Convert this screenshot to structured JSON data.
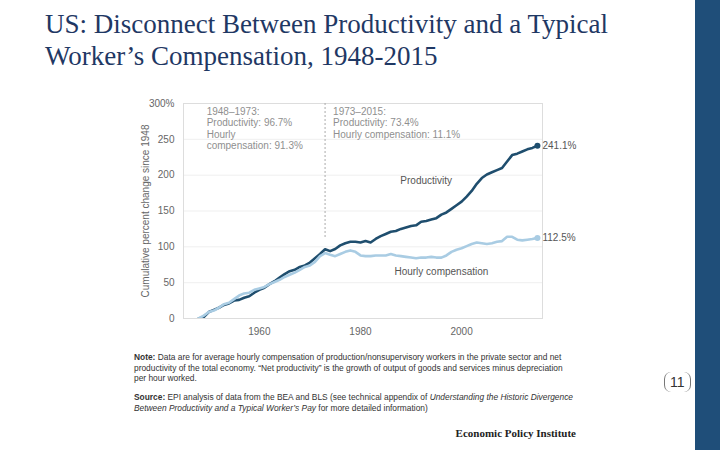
{
  "slide": {
    "title": "US: Disconnect Between Productivity and a Typical Worker’s Compensation, 1948-2015",
    "page_number": 11
  },
  "chart_data": {
    "type": "line",
    "y_label": "Cumulative percent change since 1948",
    "x": [
      1948,
      1949,
      1950,
      1951,
      1952,
      1953,
      1954,
      1955,
      1956,
      1957,
      1958,
      1959,
      1960,
      1961,
      1962,
      1963,
      1964,
      1965,
      1966,
      1967,
      1968,
      1969,
      1970,
      1971,
      1972,
      1973,
      1974,
      1975,
      1976,
      1977,
      1978,
      1979,
      1980,
      1981,
      1982,
      1983,
      1984,
      1985,
      1986,
      1987,
      1988,
      1989,
      1990,
      1991,
      1992,
      1993,
      1994,
      1995,
      1996,
      1997,
      1998,
      1999,
      2000,
      2001,
      2002,
      2003,
      2004,
      2005,
      2006,
      2007,
      2008,
      2009,
      2010,
      2011,
      2012,
      2013,
      2014,
      2015
    ],
    "series": [
      {
        "name": "Productivity",
        "color": "#1f4e6e",
        "end_label": "241.1%",
        "values": [
          0,
          2,
          9,
          12,
          15,
          19,
          21,
          25,
          26,
          29,
          31,
          36,
          40,
          43,
          48,
          52,
          57,
          62,
          66,
          68,
          72,
          74,
          78,
          84,
          90,
          96.7,
          94,
          97,
          102,
          105,
          107,
          107,
          106,
          108,
          106,
          111,
          115,
          118,
          121,
          122,
          125,
          127,
          129,
          130,
          135,
          136,
          138,
          140,
          145,
          148,
          153,
          158,
          163,
          170,
          178,
          188,
          196,
          201,
          204,
          207,
          210,
          219,
          228,
          230,
          233,
          236,
          238,
          241.1
        ]
      },
      {
        "name": "Hourly compensation",
        "color": "#a9cce3",
        "end_label": "112.5%",
        "values": [
          0,
          4,
          9,
          11,
          15,
          20,
          22,
          27,
          32,
          35,
          36,
          40,
          42,
          44,
          48,
          51,
          54,
          58,
          61,
          64,
          68,
          72,
          74,
          79,
          87,
          91.3,
          89,
          87,
          90,
          93,
          95,
          93,
          88,
          87,
          87,
          88,
          88,
          88,
          90,
          88,
          87,
          86,
          85,
          84,
          85,
          85,
          86,
          85,
          85,
          88,
          93,
          96,
          98,
          101,
          104,
          106,
          105,
          104,
          105,
          107,
          108,
          114,
          114,
          110,
          109,
          110,
          111,
          112.5
        ]
      }
    ],
    "xlim": [
      1945,
      2016
    ],
    "xticks": [
      1960,
      1980,
      2000
    ],
    "ylim": [
      0,
      300
    ],
    "yticks": [
      0,
      50,
      100,
      150,
      200,
      250,
      {
        "value": 300,
        "label": "300%"
      }
    ],
    "grid": true,
    "period_notes": [
      {
        "start": 1948,
        "lines": [
          "1948–1973:",
          "Productivity: 96.7%",
          "Hourly",
          "compensation: 91.3%"
        ]
      },
      {
        "start": 1973,
        "lines": [
          "1973–2015:",
          "Productivity: 73.4%",
          "Hourly compensation: 11.1%"
        ]
      }
    ],
    "note": {
      "label": "Note:",
      "text": "Data are for average hourly compensation of production/nonsupervisory workers in the private sector and net productivity of the total economy. “Net productivity” is the growth of output of goods and services minus depreciation per hour worked."
    },
    "source": {
      "label": "Source:",
      "before": "EPI analysis of data from the BEA and BLS (see technical appendix of ",
      "italic": "Understanding the Historic Divergence Between Productivity and a Typical Worker’s Pay",
      "after": " for more detailed information)"
    },
    "publisher": "Economic Policy Institute"
  }
}
